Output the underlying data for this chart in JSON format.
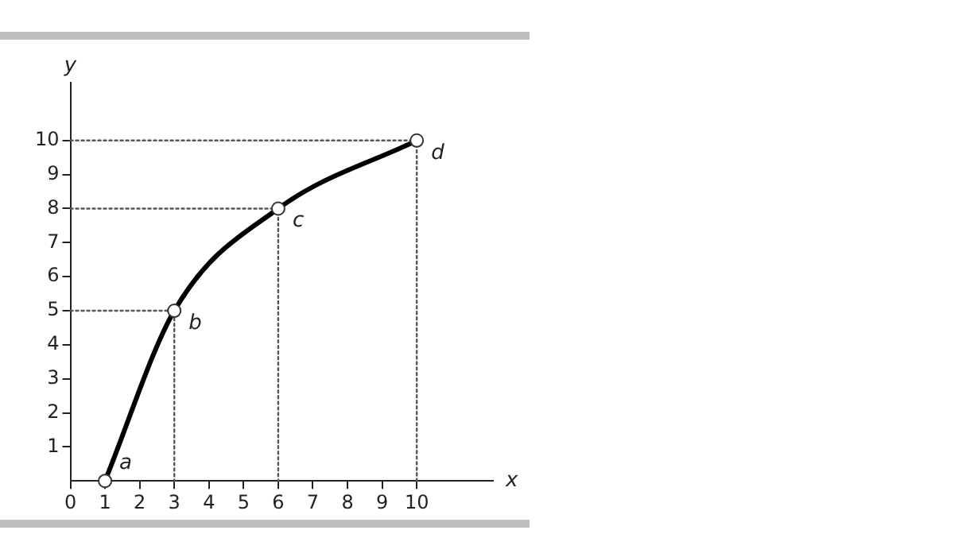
{
  "chart_data": {
    "type": "line",
    "xlabel": "x",
    "ylabel": "y",
    "xlim": [
      0,
      12.2
    ],
    "ylim": [
      0,
      11.7
    ],
    "xticks": [
      0,
      1,
      2,
      3,
      4,
      5,
      6,
      7,
      8,
      9,
      10
    ],
    "yticks": [
      1,
      2,
      3,
      4,
      5,
      6,
      7,
      8,
      9,
      10
    ],
    "grid": false,
    "legend": false,
    "marker": "circle",
    "line_style": "solid",
    "series": [
      {
        "color": "#000000",
        "x": [
          1,
          3,
          6,
          10
        ],
        "values": [
          0,
          5,
          8,
          10
        ]
      },
      {
        "color": "#555555",
        "x": [
          0,
          3,
          3
        ],
        "values": [
          5,
          5,
          0
        ],
        "marker": "none",
        "line_style": "dotted"
      },
      {
        "color": "#555555",
        "x": [
          0,
          6,
          6
        ],
        "values": [
          8,
          8,
          0
        ],
        "marker": "none",
        "line_style": "dotted"
      },
      {
        "color": "#555555",
        "x": [
          0,
          10,
          10
        ],
        "values": [
          10,
          10,
          0
        ],
        "marker": "none",
        "line_style": "dotted"
      }
    ],
    "annotations": [
      {
        "text": "a",
        "x": 1,
        "y": 0
      },
      {
        "text": "b",
        "x": 3,
        "y": 5
      },
      {
        "text": "c",
        "x": 6,
        "y": 8
      },
      {
        "text": "d",
        "x": 10,
        "y": 10
      }
    ]
  }
}
